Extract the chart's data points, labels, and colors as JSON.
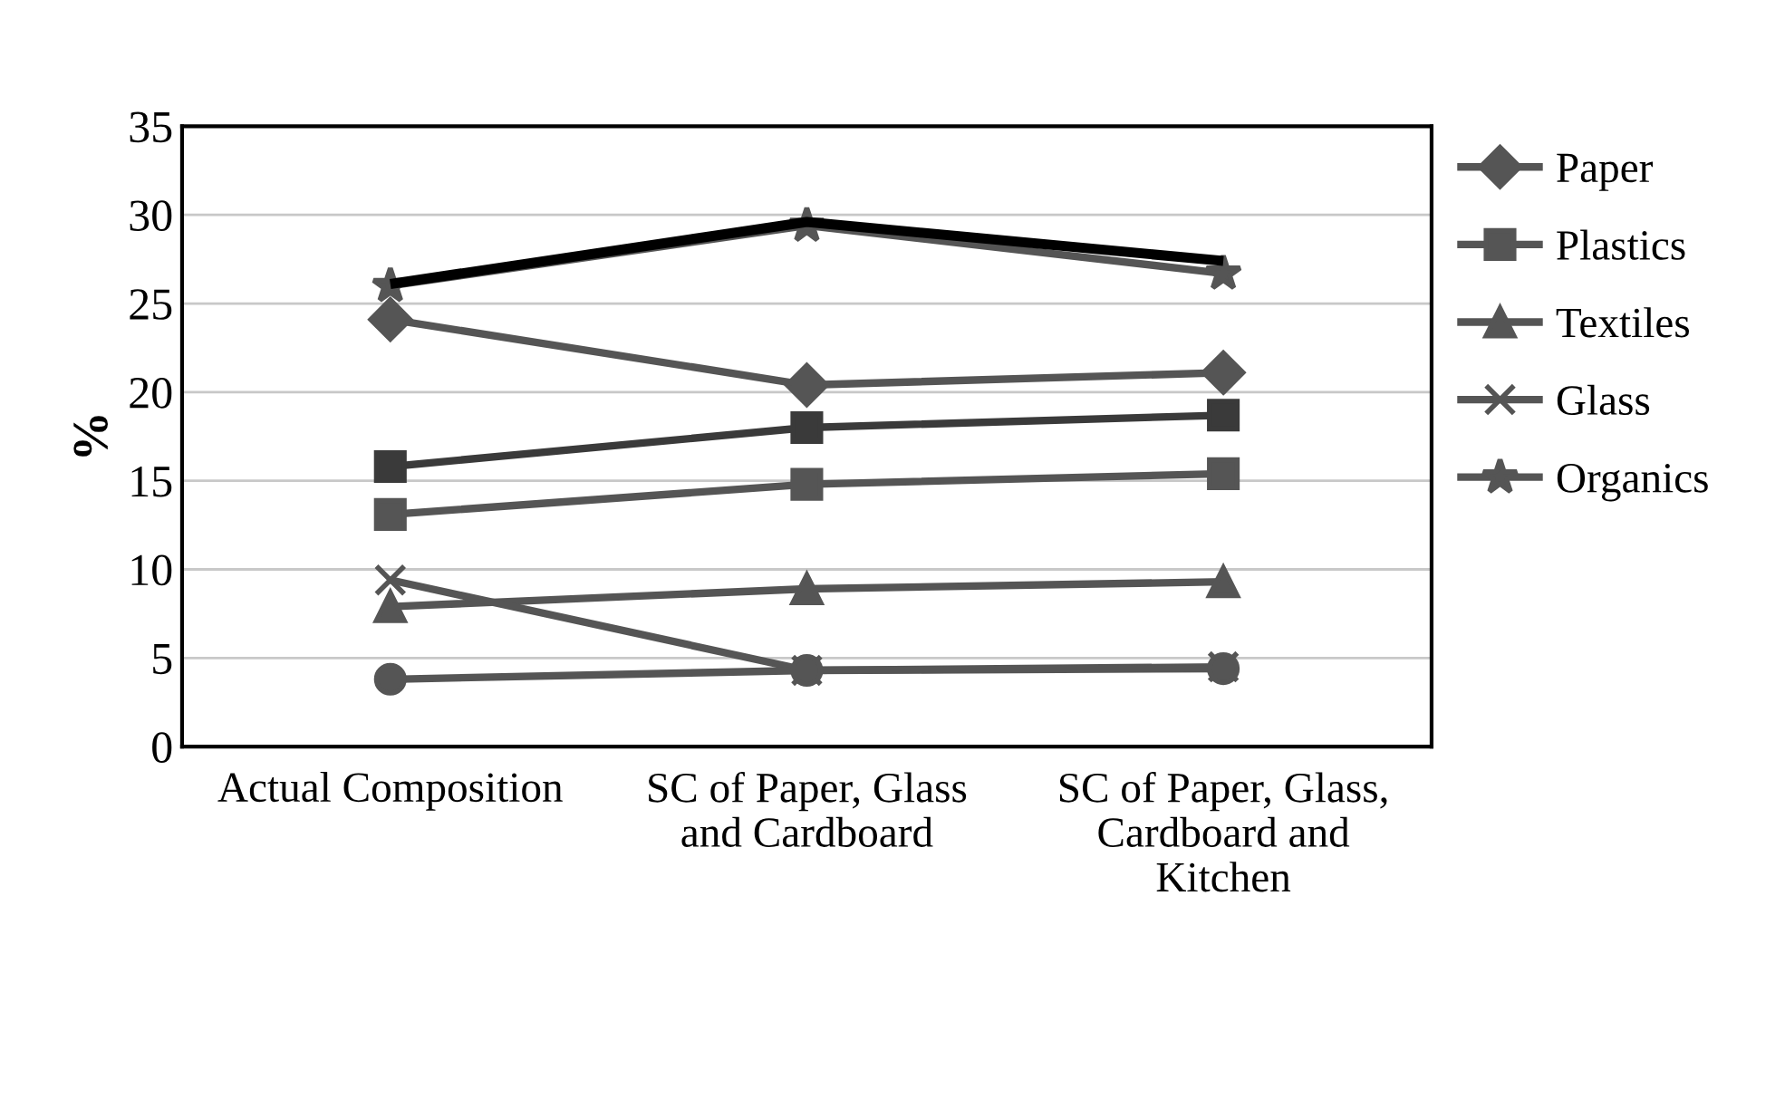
{
  "chart_data": {
    "type": "line",
    "ylabel": "%",
    "categories": [
      "Actual Composition",
      "SC of Paper, Glass\nand Cardboard",
      "SC of Paper, Glass,\nCardboard and\nKitchen"
    ],
    "series": [
      {
        "name": "Paper",
        "color": "#555555",
        "marker": "diamond",
        "values": [
          24.1,
          20.4,
          21.1
        ]
      },
      {
        "name": "Plastics",
        "color": "#555555",
        "marker": "square",
        "values": [
          13.1,
          14.8,
          15.4
        ]
      },
      {
        "name": "Textiles",
        "color": "#555555",
        "marker": "triangle",
        "values": [
          7.9,
          8.9,
          9.3
        ]
      },
      {
        "name": "Glass",
        "color": "#555555",
        "marker": "cross",
        "values": [
          9.4,
          4.3,
          4.5
        ]
      },
      {
        "name": "Organics",
        "color": "#555555",
        "marker": "star",
        "values": [
          26.0,
          29.4,
          26.7
        ]
      },
      {
        "color": "#3a3a3a",
        "marker": "square",
        "values": [
          15.8,
          18.0,
          18.7
        ]
      },
      {
        "color": "#555555",
        "marker": "circle",
        "values": [
          3.8,
          4.3,
          4.4
        ]
      },
      {
        "color": "#000000",
        "marker": "none",
        "values": [
          26.1,
          29.6,
          27.4
        ]
      }
    ],
    "ylim": [
      0,
      35
    ],
    "yticks": [
      0,
      5,
      10,
      15,
      20,
      25,
      30,
      35
    ],
    "grid": "y",
    "legend": "top right"
  }
}
